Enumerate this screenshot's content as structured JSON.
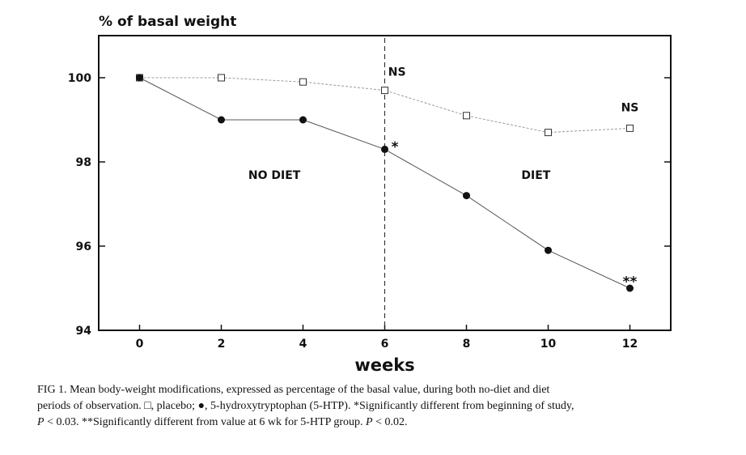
{
  "chart_data": {
    "type": "line",
    "ylabel": "% of basal weight",
    "xlabel": "weeks",
    "xlim": [
      -1,
      13
    ],
    "ylim": [
      94,
      101
    ],
    "xticks": [
      0,
      2,
      4,
      6,
      8,
      10,
      12
    ],
    "yticks": [
      94,
      96,
      98,
      100
    ],
    "grid": false,
    "legend": "none",
    "series": [
      {
        "name": "placebo",
        "marker": "open-square",
        "x": [
          0,
          2,
          4,
          6,
          8,
          10,
          12
        ],
        "values": [
          100,
          100,
          99.9,
          99.7,
          99.1,
          98.7,
          98.8
        ]
      },
      {
        "name": "5-hydroxytryptophan (5-HTP)",
        "marker": "filled-circle",
        "x": [
          0,
          2,
          4,
          6,
          8,
          10,
          12
        ],
        "values": [
          100,
          99,
          99,
          98.3,
          97.2,
          95.9,
          95
        ]
      }
    ],
    "vline": {
      "x": 6,
      "style": "dashed"
    },
    "region_labels": [
      {
        "text": "NO DIET",
        "x": 3.3,
        "y": 97.6
      },
      {
        "text": "DIET",
        "x": 9.7,
        "y": 97.6
      }
    ],
    "annotations": [
      {
        "text": "NS",
        "x": 6.3,
        "y": 100.05
      },
      {
        "text": "NS",
        "x": 12,
        "y": 99.2
      },
      {
        "text": "*",
        "x": 6.25,
        "y": 98.4
      },
      {
        "text": "**",
        "x": 12,
        "y": 95.2
      }
    ]
  },
  "caption": {
    "fig_label": "FIG 1.",
    "line1": "Mean body-weight modifications, expressed as percentage of the basal value, during both no-diet and diet",
    "line2": "periods of observation. □, placebo; ●, 5-hydroxytryptophan (5-HTP). *Significantly different from beginning of study,",
    "line3_p": "P",
    "line3_a": " < 0.03. **Significantly different from value at 6 wk for 5-HTP group. ",
    "line3_p2": "P",
    "line3_b": " < 0.02."
  }
}
